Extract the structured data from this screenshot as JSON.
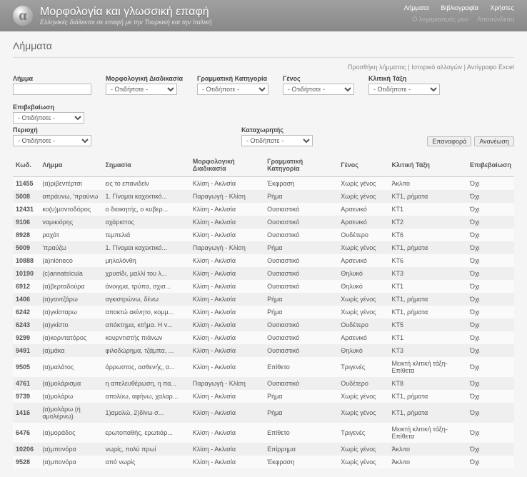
{
  "header": {
    "logo_glyph": "α",
    "title": "Μορφολογία και γλωσσική επαφή",
    "subtitle": "Ελληνικές διάλεκτοι σε επαφή με την Τουρκική και την Ιταλική"
  },
  "topnav": {
    "lemmata": "Λήμματα",
    "biblio": "Βιβλιογραφία",
    "users": "Χρήστες"
  },
  "subnav": {
    "account": "Ο λογαριασμός μου",
    "logout": "Αποσύνδεση"
  },
  "page_title": "Λήμματα",
  "top_actions": {
    "add": "Προσθήκη λήμματος",
    "history": "Ιστορικό αλλαγών",
    "excel": "Αντίγραφο Excel",
    "sep": " | "
  },
  "filters": {
    "lemma": "Λήμμα",
    "morph": "Μορφολογική Διαδικασία",
    "gram": "Γραμματική Κατηγορία",
    "genos": "Γένος",
    "klit": "Κλιτική Τάξη",
    "epi": "Επιβεβαίωση",
    "region": "Περιοχή",
    "registrar": "Καταχωρητής",
    "any": "- Οτιδήποτε -",
    "reset": "Επαναφορά",
    "refresh": "Ανανέωση"
  },
  "columns": {
    "id": "Κωδ.",
    "lemma": "Λήμμα",
    "meaning": "Σημασία",
    "morph": "Μορφολογική Διαδικασία",
    "gram": "Γραμματική Κατηγορία",
    "genos": "Γένος",
    "klit": "Κλιτική Τάξη",
    "epi": "Επιβεβαίωση"
  },
  "rows": [
    {
      "id": "11455",
      "lemma": "(α)ριβεντέρτσι",
      "meaning": "εις το επανιδείν",
      "morph": "Κλίση - Ακλισία",
      "gram": "Έκφραση",
      "genos": "Χωρίς γένος",
      "klit": "Άκλιτο",
      "epi": "Όχι"
    },
    {
      "id": "5008",
      "lemma": "απράυνω, 'πραύνω",
      "meaning": "1. Γίνομαι καχεκτικό...",
      "morph": "Παραγωγή - Κλίση",
      "gram": "Ρήμα",
      "genos": "Χωρίς γένος",
      "klit": "ΚΤ1, ρήματα",
      "epi": "Όχι"
    },
    {
      "id": "12431",
      "lemma": "κο(υ)μοντοδόρος",
      "meaning": "ο διοικητής, ο κυβερ...",
      "morph": "Κλίση - Ακλισία",
      "gram": "Ουσιαστικό",
      "genos": "Αρσενικό",
      "klit": "ΚΤ1",
      "epi": "Όχι"
    },
    {
      "id": "9106",
      "lemma": "ναμικιόρης",
      "meaning": "αχάριστος",
      "morph": "Κλίση - Ακλισία",
      "gram": "Ουσιαστικό",
      "genos": "Αρσενικό",
      "klit": "ΚΤ2",
      "epi": "Όχι"
    },
    {
      "id": "8928",
      "lemma": "ραχάτ",
      "meaning": "τεμπελιά",
      "morph": "Κλίση - Ακλισία",
      "gram": "Ουσιαστικό",
      "genos": "Ουδέτερο",
      "klit": "ΚΤ6",
      "epi": "Όχι"
    },
    {
      "id": "5009",
      "lemma": "'πραύζω",
      "meaning": "1. Γίνομαι καχεκτικό...",
      "morph": "Παραγωγή - Κλίση",
      "gram": "Ρήμα",
      "genos": "Χωρίς γένος",
      "klit": "ΚΤ1, ρήματα",
      "epi": "Όχι"
    },
    {
      "id": "10888",
      "lemma": "(a)nlóneco",
      "meaning": "μηλολόνθη",
      "morph": "Κλίση - Ακλισία",
      "gram": "Ουσιαστικό",
      "genos": "Αρσενικό",
      "klit": "ΚΤ6",
      "epi": "Όχι"
    },
    {
      "id": "10190",
      "lemma": "(c)annatsícula",
      "meaning": "χρυσίδι, μαλλί του λ...",
      "morph": "Κλίση - Ακλισία",
      "gram": "Ουσιαστικό",
      "genos": "Θηλυκό",
      "klit": "ΚΤ3",
      "epi": "Όχι"
    },
    {
      "id": "6912",
      "lemma": "(α)βερταδούρα",
      "meaning": "άνοιγμα, τρύπα, σχισ...",
      "morph": "Κλίση - Ακλισία",
      "gram": "Ουσιαστικό",
      "genos": "Θηλυκό",
      "klit": "ΚΤ1",
      "epi": "Όχι"
    },
    {
      "id": "1406",
      "lemma": "(α)γαντζάρω",
      "meaning": "αγκιστρώνω, δένω",
      "morph": "Κλίση - Ακλισία",
      "gram": "Ρήμα",
      "genos": "Χωρίς γένος",
      "klit": "ΚΤ1, ρήματα",
      "epi": "Όχι"
    },
    {
      "id": "6242",
      "lemma": "(α)γκίσταρω",
      "meaning": "αποκτώ ακίνητο, κομμ...",
      "morph": "Κλίση - Ακλισία",
      "gram": "Ρήμα",
      "genos": "Χωρίς γένος",
      "klit": "ΚΤ1, ρήματα",
      "epi": "Όχι"
    },
    {
      "id": "6243",
      "lemma": "(α)γκίστο",
      "meaning": "απόκτημα, κτήμα. Η ν...",
      "morph": "Κλίση - Ακλισία",
      "gram": "Ουσιαστικό",
      "genos": "Ουδέτερο",
      "klit": "ΚΤ5",
      "epi": "Όχι"
    },
    {
      "id": "9299",
      "lemma": "(α)κορντατόρος",
      "meaning": "κουρντιστής πιάνων",
      "morph": "Κλίση - Ακλισία",
      "gram": "Ουσιαστικό",
      "genos": "Αρσενικό",
      "klit": "ΚΤ1",
      "epi": "Όχι"
    },
    {
      "id": "9491",
      "lemma": "(α)μάκα",
      "meaning": "φιλοδώρημα, τζάμπα, ...",
      "morph": "Κλίση - Ακλισία",
      "gram": "Ουσιαστικό",
      "genos": "Θηλυκό",
      "klit": "ΚΤ3",
      "epi": "Όχι"
    },
    {
      "id": "9505",
      "lemma": "(α)μαλάτος",
      "meaning": "άρρωστος, ασθενής, α...",
      "morph": "Κλίση - Ακλισία",
      "gram": "Επίθετο",
      "genos": "Τριγενές",
      "klit": "Μεικτή κλιτική τάξη-Επίθετα",
      "epi": "Όχι"
    },
    {
      "id": "4761",
      "lemma": "(α)μολάρισμα",
      "meaning": "η απελευθέρωση, η πα...",
      "morph": "Παραγωγή - Κλίση",
      "gram": "Ουσιαστικό",
      "genos": "Ουδέτερο",
      "klit": "ΚΤ8",
      "epi": "Όχι"
    },
    {
      "id": "9739",
      "lemma": "(α)μολάρω",
      "meaning": "απολύω, αφήνω, χαλαρ...",
      "morph": "Κλίση - Ακλισία",
      "gram": "Ρήμα",
      "genos": "Χωρίς γένος",
      "klit": "ΚΤ1, ρήματα",
      "epi": "Όχι"
    },
    {
      "id": "1416",
      "lemma": "(α)μολάρω (ή αμολέρνω)",
      "meaning": "1)αμολώ, 2)δίνω σ...",
      "morph": "Κλίση - Ακλισία",
      "gram": "Ρήμα",
      "genos": "Χωρίς γένος",
      "klit": "ΚΤ1, ρήματα",
      "epi": "Όχι"
    },
    {
      "id": "6476",
      "lemma": "(α)μοράδος",
      "meaning": "ερωτοπαθής, ερωτιάρ...",
      "morph": "Κλίση - Ακλισία",
      "gram": "Επίθετο",
      "genos": "Τριγενές",
      "klit": "Μεικτή κλιτική τάξη-Επίθετα",
      "epi": "Όχι"
    },
    {
      "id": "10206",
      "lemma": "(α)μπονόρα",
      "meaning": "νωρίς, πολύ πρωί",
      "morph": "Κλίση - Ακλισία",
      "gram": "Επίρρημα",
      "genos": "Χωρίς γένος",
      "klit": "Άκλιτο",
      "epi": "Όχι"
    },
    {
      "id": "9528",
      "lemma": "(α)μπονόρα",
      "meaning": "από νωρίς",
      "morph": "Κλίση - Ακλισία",
      "gram": "Έκφραση",
      "genos": "Χωρίς γένος",
      "klit": "Άκλιτο",
      "epi": "Όχι"
    }
  ]
}
